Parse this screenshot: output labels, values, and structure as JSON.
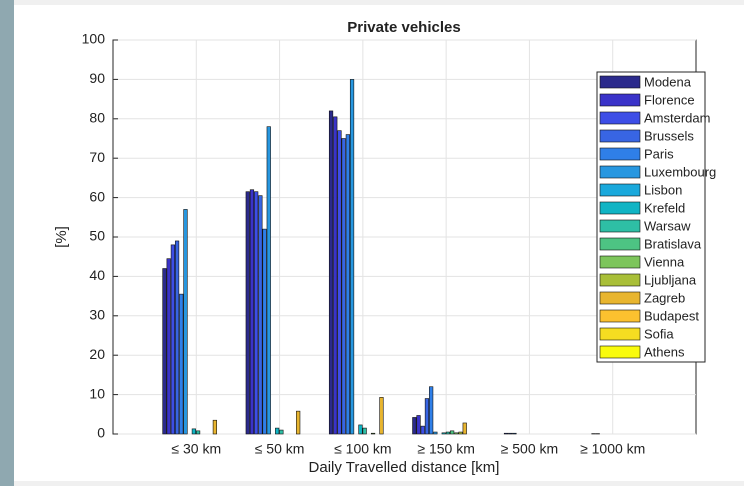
{
  "chart_data": {
    "type": "bar",
    "title": "Private vehicles",
    "xlabel": "Daily Travelled distance [km]",
    "ylabel": "[%]",
    "categories": [
      "≤ 30 km",
      "≤ 50 km",
      "≤ 100 km",
      "≥ 150 km",
      "≥ 500 km",
      "≥ 1000 km"
    ],
    "ylim": [
      0,
      100
    ],
    "yticks": [
      0,
      10,
      20,
      30,
      40,
      50,
      60,
      70,
      80,
      90,
      100
    ],
    "grid": true,
    "legend": "upper right",
    "series": [
      {
        "name": "Modena",
        "color": "#2b2a8c",
        "values": [
          42,
          61.5,
          82,
          4.2,
          0,
          0
        ]
      },
      {
        "name": "Florence",
        "color": "#3a33c9",
        "values": [
          44.5,
          62,
          80.5,
          4.7,
          0,
          0
        ]
      },
      {
        "name": "Amsterdam",
        "color": "#3d4ee6",
        "values": [
          48,
          61.5,
          77,
          2,
          0.2,
          0
        ]
      },
      {
        "name": "Brussels",
        "color": "#3865e3",
        "values": [
          49,
          60.5,
          75,
          9,
          0.2,
          0.1
        ]
      },
      {
        "name": "Paris",
        "color": "#2f7fe8",
        "values": [
          35.5,
          52,
          76,
          12,
          0.2,
          0.1
        ]
      },
      {
        "name": "Luxembourg",
        "color": "#2797e0",
        "values": [
          57,
          78,
          90,
          0.5,
          0,
          0
        ]
      },
      {
        "name": "Lisbon",
        "color": "#1aa9dc",
        "values": [
          0,
          0,
          0,
          0,
          0,
          0
        ]
      },
      {
        "name": "Krefeld",
        "color": "#10b4c4",
        "values": [
          1.3,
          1.5,
          2.3,
          0.3,
          0,
          0
        ]
      },
      {
        "name": "Warsaw",
        "color": "#2ebfa5",
        "values": [
          0.8,
          1,
          1.5,
          0.5,
          0,
          0
        ]
      },
      {
        "name": "Bratislava",
        "color": "#4dc483",
        "values": [
          0,
          0,
          0,
          0.8,
          0,
          0
        ]
      },
      {
        "name": "Vienna",
        "color": "#7dc55b",
        "values": [
          0,
          0,
          0.2,
          0.3,
          0,
          0
        ]
      },
      {
        "name": "Ljubljana",
        "color": "#a9bf38",
        "values": [
          0,
          0,
          0,
          0.5,
          0,
          0
        ]
      },
      {
        "name": "Zagreb",
        "color": "#e8b52f",
        "values": [
          3.5,
          5.8,
          9.3,
          2.8,
          0,
          0
        ]
      },
      {
        "name": "Budapest",
        "color": "#fcc12f",
        "values": [
          0,
          0,
          0,
          0,
          0,
          0
        ]
      },
      {
        "name": "Sofia",
        "color": "#f5dd21",
        "values": [
          0,
          0,
          0,
          0,
          0,
          0
        ]
      },
      {
        "name": "Athens",
        "color": "#f9fb0e",
        "values": [
          0,
          0,
          0,
          0,
          0,
          0
        ]
      }
    ]
  }
}
